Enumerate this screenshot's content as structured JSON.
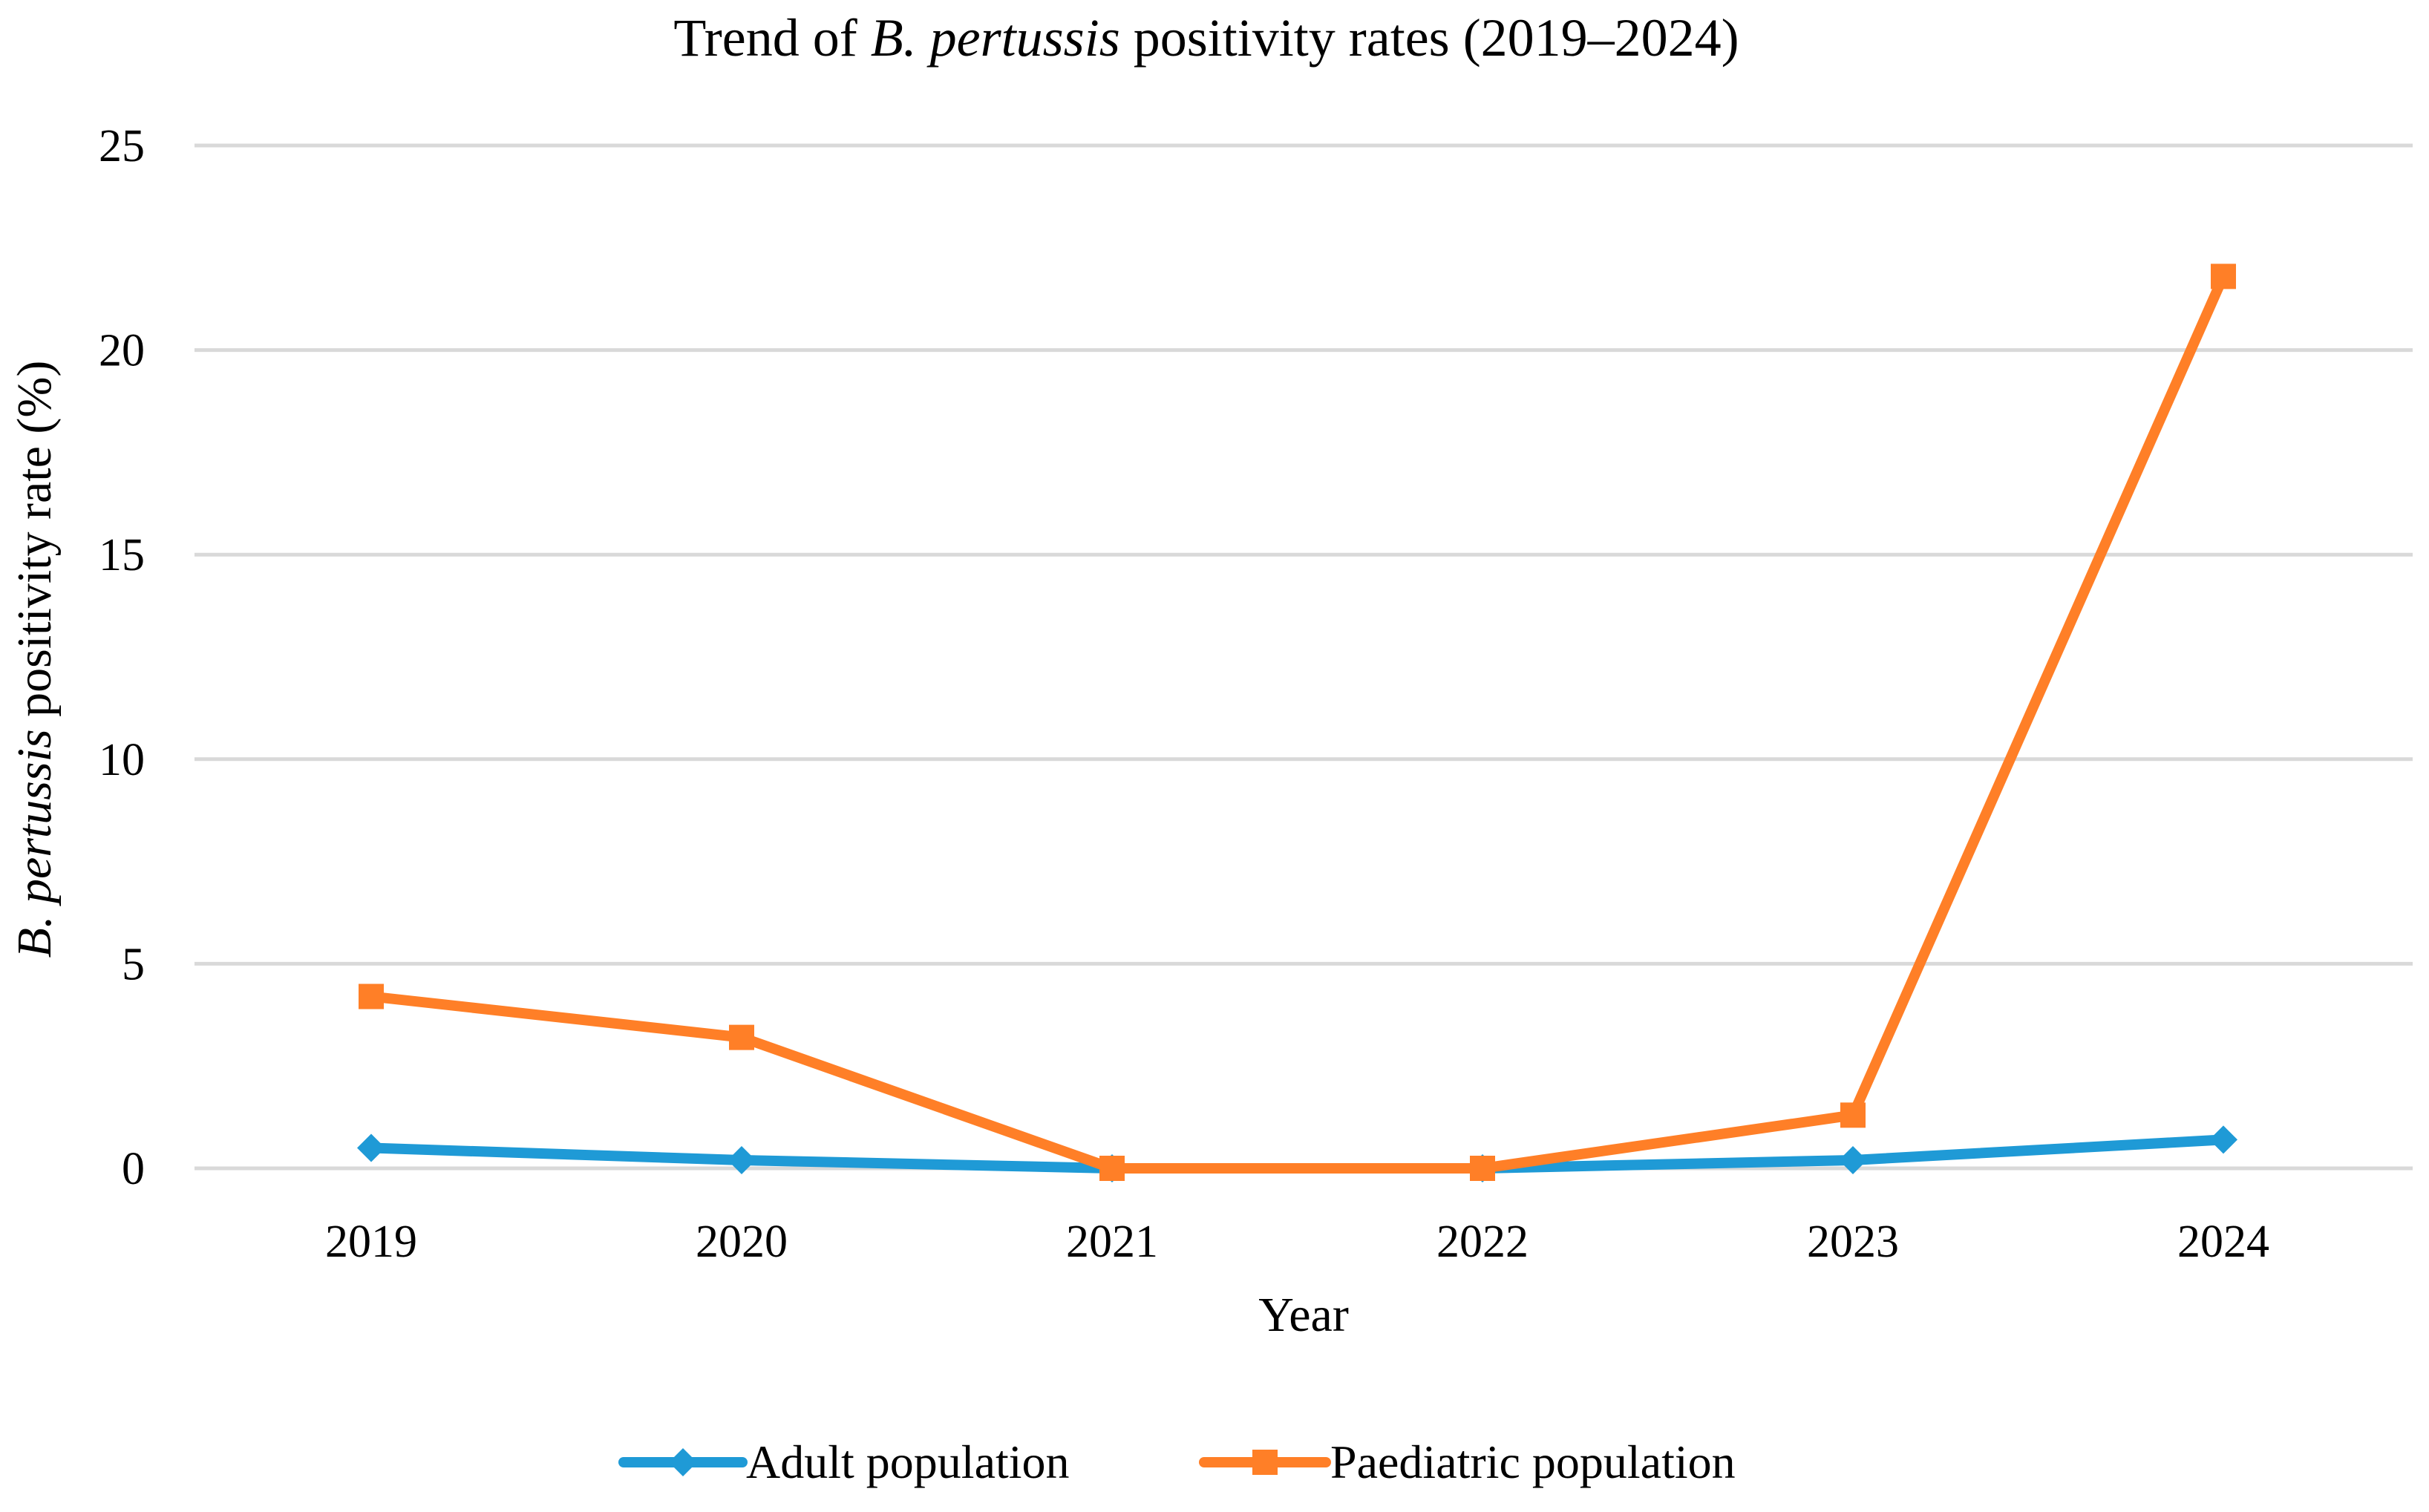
{
  "chart_data": {
    "type": "line",
    "title": {
      "prefix": "Trend  of ",
      "italic": "B. pertussis",
      "suffix": " positivity  rates (2019–2024)"
    },
    "xlabel": "Year",
    "ylabel": {
      "italic": "B. pertussis",
      "suffix": " positivity rate (%)"
    },
    "categories": [
      "2019",
      "2020",
      "2021",
      "2022",
      "2023",
      "2024"
    ],
    "ylim": [
      0,
      25
    ],
    "yticks": [
      0,
      5,
      10,
      15,
      20,
      25
    ],
    "grid": true,
    "legend_position": "bottom",
    "series": [
      {
        "name": "Adult population",
        "color": "#1f9ad6",
        "marker": "diamond",
        "values": [
          0.5,
          0.2,
          0.0,
          0.0,
          0.2,
          0.7
        ]
      },
      {
        "name": "Paediatric population",
        "color": "#ff7f27",
        "marker": "square",
        "values": [
          4.2,
          3.2,
          0.0,
          0.0,
          1.3,
          21.8
        ]
      }
    ]
  }
}
